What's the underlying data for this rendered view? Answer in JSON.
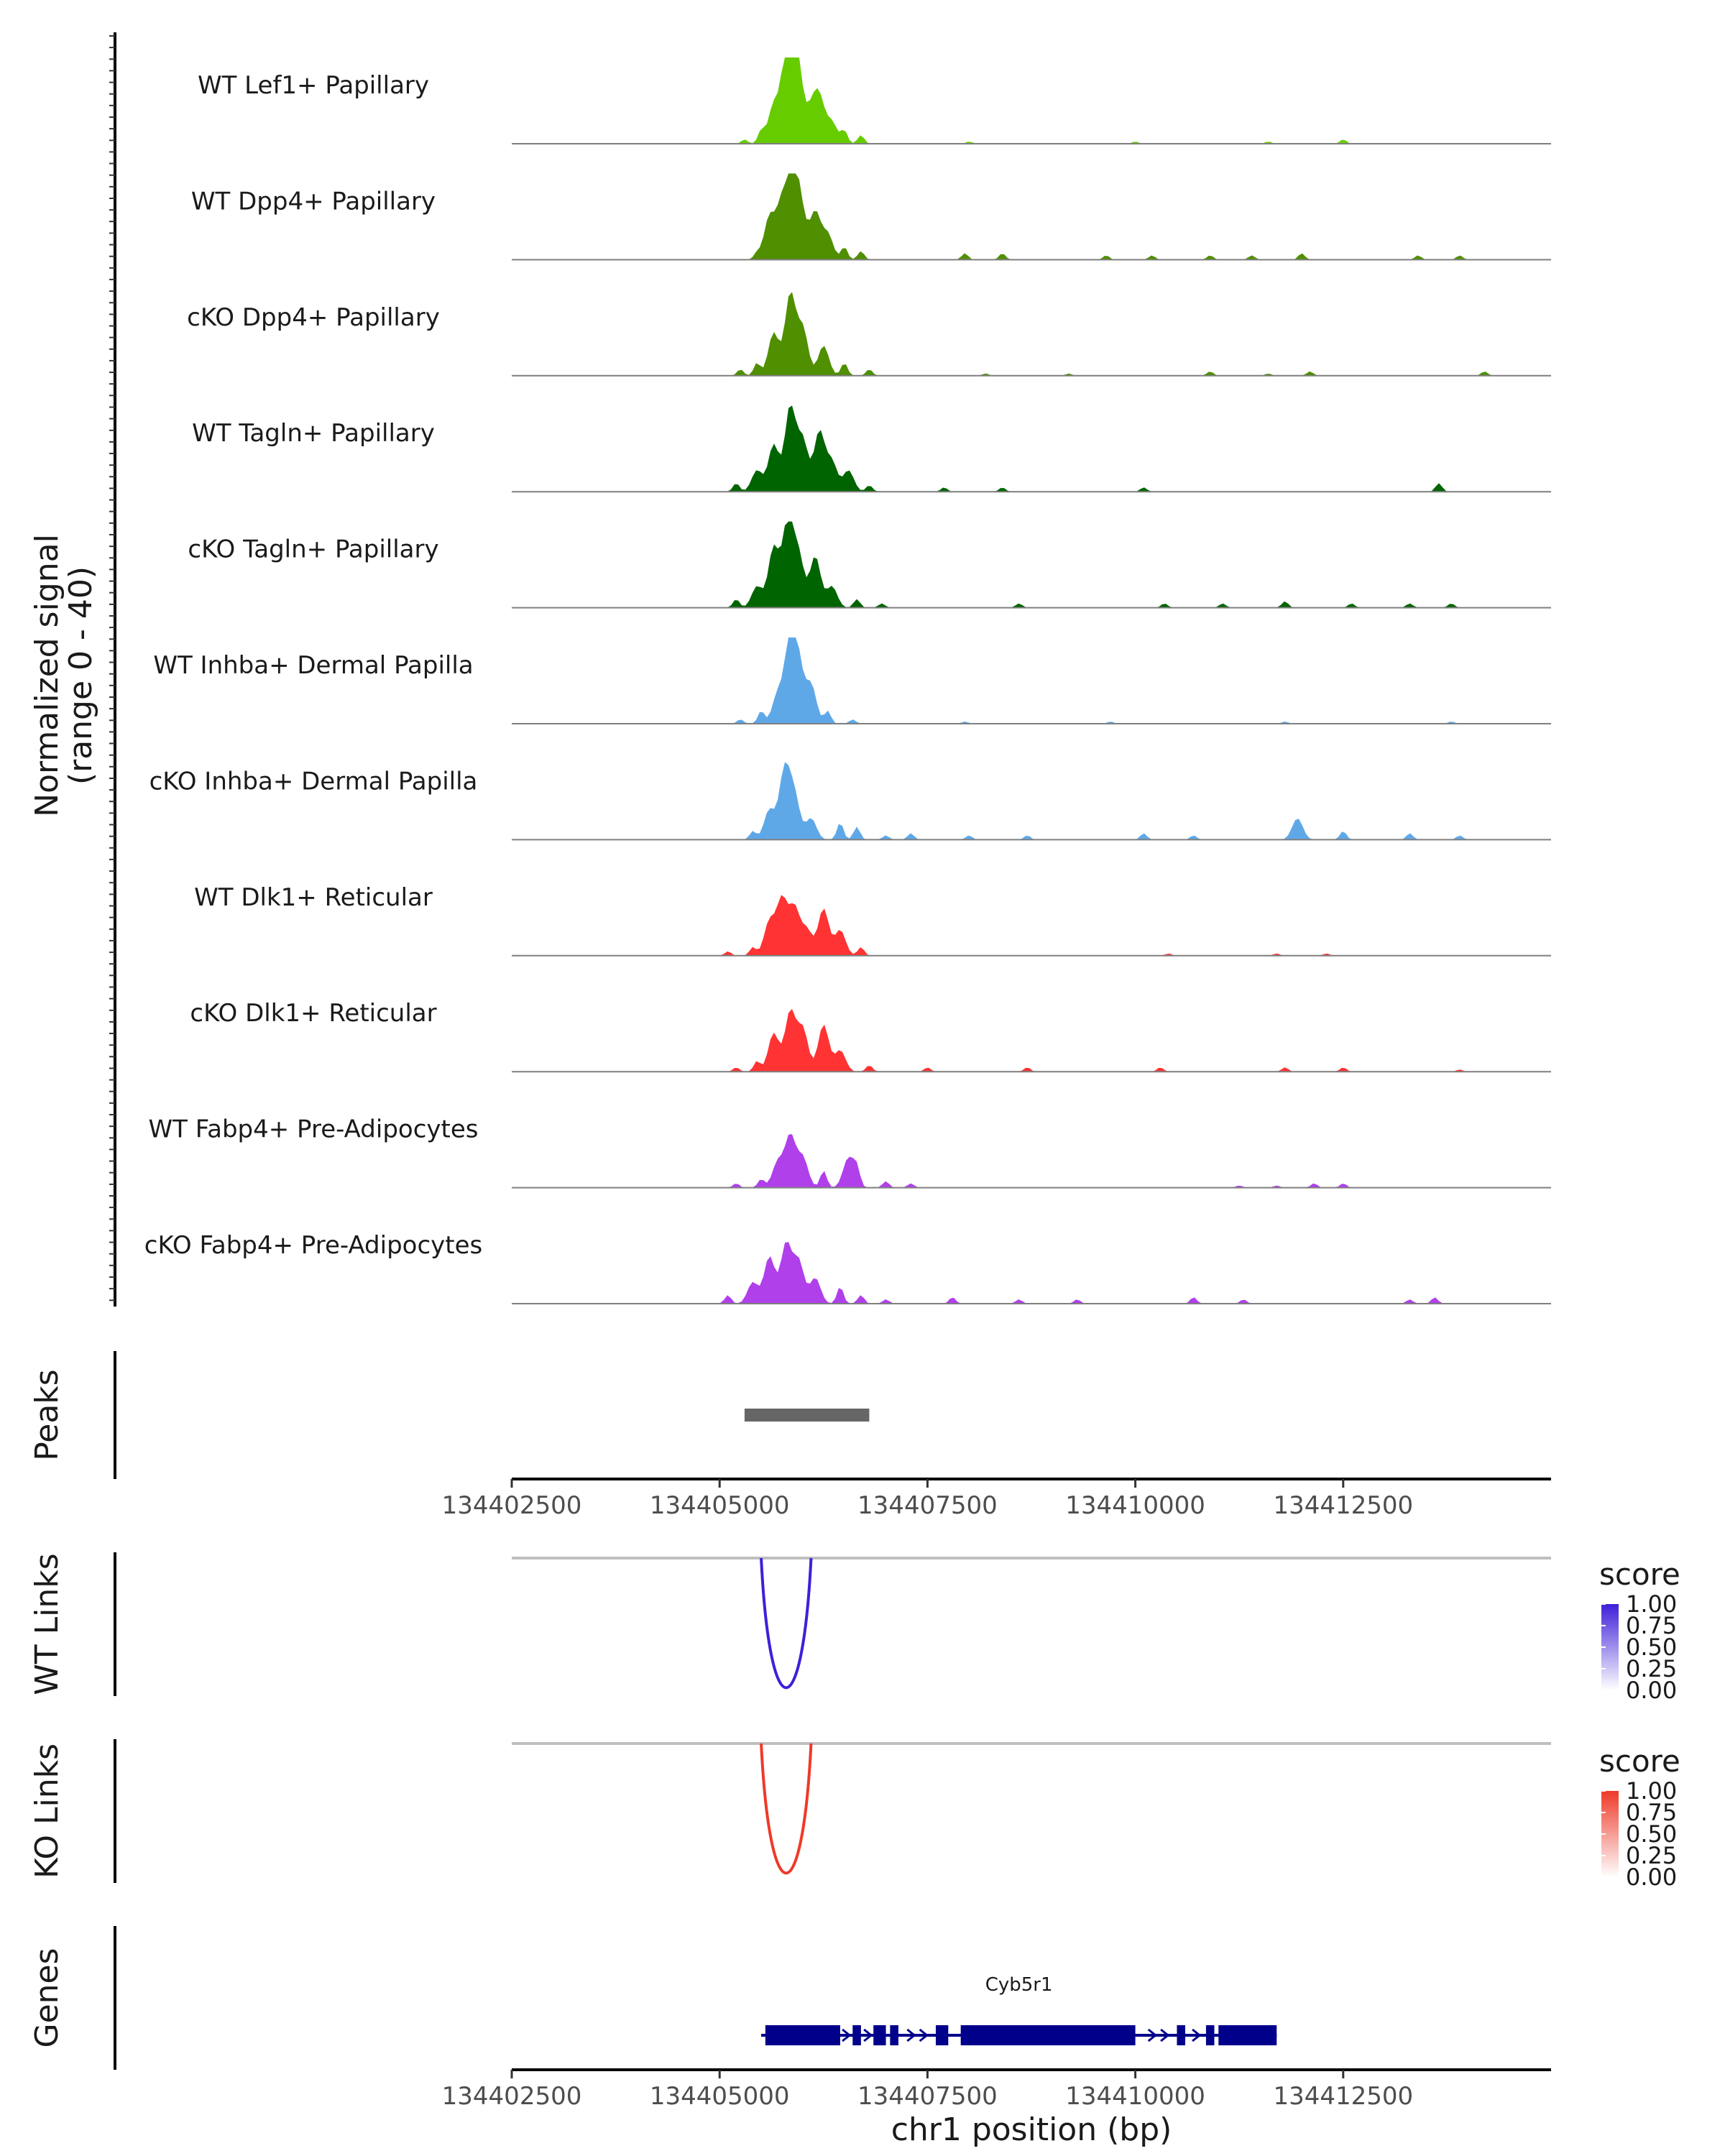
{
  "chart_data": {
    "type": "area",
    "x_range": [
      134402500,
      134415000
    ],
    "y_range": [
      0,
      40
    ],
    "signal_axis_label": "Normalized signal",
    "signal_axis_range_label": "(range 0 - 40)",
    "x_axis_label": "chr1 position (bp)",
    "x_ticks": [
      {
        "value": 134402500,
        "label": "134402500"
      },
      {
        "value": 134405000,
        "label": "134405000"
      },
      {
        "value": 134407500,
        "label": "134407500"
      },
      {
        "value": 134410000,
        "label": "134410000"
      },
      {
        "value": 134412500,
        "label": "134412500"
      }
    ],
    "coverage_tracks": [
      {
        "name": "WT Lef1+ Papillary",
        "color": "#66cc00",
        "peaks": [
          [
            134405300,
            2
          ],
          [
            134405500,
            6
          ],
          [
            134405650,
            18
          ],
          [
            134405800,
            34
          ],
          [
            134405880,
            40
          ],
          [
            134405950,
            22
          ],
          [
            134406100,
            14
          ],
          [
            134406200,
            20
          ],
          [
            134406350,
            10
          ],
          [
            134406500,
            6
          ],
          [
            134406700,
            4
          ],
          [
            134408000,
            1
          ],
          [
            134410000,
            1
          ],
          [
            134411600,
            1
          ],
          [
            134412500,
            2
          ]
        ]
      },
      {
        "name": "WT Dpp4+ Papillary",
        "color": "#4f8f00",
        "peaks": [
          [
            134405450,
            3
          ],
          [
            134405600,
            20
          ],
          [
            134405750,
            26
          ],
          [
            134405880,
            38
          ],
          [
            134405980,
            20
          ],
          [
            134406150,
            22
          ],
          [
            134406300,
            12
          ],
          [
            134406500,
            6
          ],
          [
            134406700,
            4
          ],
          [
            134407950,
            3
          ],
          [
            134408400,
            3
          ],
          [
            134409650,
            2
          ],
          [
            134410200,
            2
          ],
          [
            134410900,
            2
          ],
          [
            134411400,
            2
          ],
          [
            134412000,
            3
          ],
          [
            134413400,
            2
          ],
          [
            134413900,
            2
          ]
        ]
      },
      {
        "name": "cKO Dpp4+ Papillary",
        "color": "#4f8f00",
        "peaks": [
          [
            134405250,
            3
          ],
          [
            134405450,
            6
          ],
          [
            134405650,
            20
          ],
          [
            134405850,
            38
          ],
          [
            134406000,
            22
          ],
          [
            134406250,
            14
          ],
          [
            134406500,
            6
          ],
          [
            134406800,
            3
          ],
          [
            134408200,
            1
          ],
          [
            134409200,
            1
          ],
          [
            134410900,
            2
          ],
          [
            134411600,
            1
          ],
          [
            134412100,
            2
          ],
          [
            134414200,
            2
          ]
        ]
      },
      {
        "name": "WT Tagln+ Papillary",
        "color": "#006400",
        "peaks": [
          [
            134405200,
            4
          ],
          [
            134405450,
            10
          ],
          [
            134405650,
            22
          ],
          [
            134405850,
            40
          ],
          [
            134406000,
            24
          ],
          [
            134406200,
            28
          ],
          [
            134406350,
            14
          ],
          [
            134406550,
            10
          ],
          [
            134406800,
            3
          ],
          [
            134407700,
            2
          ],
          [
            134408400,
            2
          ],
          [
            134410100,
            2
          ],
          [
            134413650,
            4
          ]
        ]
      },
      {
        "name": "cKO Tagln+ Papillary",
        "color": "#006400",
        "peaks": [
          [
            134405200,
            4
          ],
          [
            134405450,
            10
          ],
          [
            134405650,
            28
          ],
          [
            134405820,
            40
          ],
          [
            134405950,
            24
          ],
          [
            134406150,
            24
          ],
          [
            134406350,
            10
          ],
          [
            134406650,
            4
          ],
          [
            134406950,
            2
          ],
          [
            134408600,
            2
          ],
          [
            134410350,
            2
          ],
          [
            134411050,
            2
          ],
          [
            134411800,
            3
          ],
          [
            134412600,
            2
          ],
          [
            134413300,
            2
          ],
          [
            134413800,
            2
          ]
        ]
      },
      {
        "name": "WT Inhba+ Dermal Papilla",
        "color": "#5fa8e8",
        "peaks": [
          [
            134405250,
            2
          ],
          [
            134405500,
            6
          ],
          [
            134405700,
            14
          ],
          [
            134405850,
            40
          ],
          [
            134405950,
            24
          ],
          [
            134406100,
            18
          ],
          [
            134406300,
            6
          ],
          [
            134406600,
            2
          ],
          [
            134407950,
            1
          ],
          [
            134409700,
            1
          ],
          [
            134411800,
            1
          ],
          [
            134413800,
            1
          ]
        ]
      },
      {
        "name": "cKO Inhba+ Dermal Papilla",
        "color": "#5fa8e8",
        "peaks": [
          [
            134405400,
            4
          ],
          [
            134405600,
            14
          ],
          [
            134405780,
            32
          ],
          [
            134405900,
            20
          ],
          [
            134406100,
            10
          ],
          [
            134406450,
            8
          ],
          [
            134406650,
            6
          ],
          [
            134407000,
            2
          ],
          [
            134407300,
            3
          ],
          [
            134408000,
            2
          ],
          [
            134408700,
            2
          ],
          [
            134410100,
            3
          ],
          [
            134410700,
            2
          ],
          [
            134411950,
            10
          ],
          [
            134412500,
            4
          ],
          [
            134413300,
            3
          ],
          [
            134413900,
            2
          ]
        ]
      },
      {
        "name": "WT Dlk1+ Reticular",
        "color": "#ff3333",
        "peaks": [
          [
            134405100,
            2
          ],
          [
            134405400,
            4
          ],
          [
            134405600,
            16
          ],
          [
            134405750,
            26
          ],
          [
            134405900,
            22
          ],
          [
            134406050,
            12
          ],
          [
            134406250,
            22
          ],
          [
            134406450,
            12
          ],
          [
            134406700,
            4
          ],
          [
            134410400,
            1
          ],
          [
            134411700,
            1
          ],
          [
            134412300,
            1
          ]
        ]
      },
      {
        "name": "cKO Dlk1+ Reticular",
        "color": "#ff3333",
        "peaks": [
          [
            134405200,
            2
          ],
          [
            134405450,
            5
          ],
          [
            134405650,
            18
          ],
          [
            134405850,
            28
          ],
          [
            134406000,
            20
          ],
          [
            134406250,
            22
          ],
          [
            134406450,
            10
          ],
          [
            134406800,
            3
          ],
          [
            134407500,
            2
          ],
          [
            134408700,
            2
          ],
          [
            134410300,
            2
          ],
          [
            134411800,
            2
          ],
          [
            134412500,
            2
          ],
          [
            134413900,
            1
          ]
        ]
      },
      {
        "name": "WT Fabp4+ Pre-Adipocytes",
        "color": "#b040ea",
        "peaks": [
          [
            134405200,
            2
          ],
          [
            134405500,
            4
          ],
          [
            134405700,
            12
          ],
          [
            134405850,
            24
          ],
          [
            134406000,
            14
          ],
          [
            134406250,
            8
          ],
          [
            134406550,
            14
          ],
          [
            134406650,
            8
          ],
          [
            134407000,
            3
          ],
          [
            134407300,
            2
          ],
          [
            134411250,
            1
          ],
          [
            134411700,
            1
          ],
          [
            134412150,
            2
          ],
          [
            134412500,
            2
          ]
        ]
      },
      {
        "name": "cKO Fabp4+ Pre-Adipocytes",
        "color": "#b040ea",
        "peaks": [
          [
            134405100,
            4
          ],
          [
            134405400,
            10
          ],
          [
            134405600,
            22
          ],
          [
            134405800,
            28
          ],
          [
            134405950,
            20
          ],
          [
            134406150,
            12
          ],
          [
            134406450,
            8
          ],
          [
            134406700,
            4
          ],
          [
            134407000,
            2
          ],
          [
            134407800,
            3
          ],
          [
            134408600,
            2
          ],
          [
            134409300,
            2
          ],
          [
            134410700,
            3
          ],
          [
            134411300,
            2
          ],
          [
            134413300,
            2
          ],
          [
            134413600,
            3
          ]
        ]
      }
    ],
    "peaks_panel": {
      "label": "Peaks",
      "regions": [
        [
          134405300,
          134406800
        ]
      ],
      "color": "#666666"
    },
    "links_panels": [
      {
        "label": "WT Links",
        "color": "#3f1fd9",
        "start": 134405500,
        "end": 134406100,
        "score": 1.0,
        "legend_title": "score",
        "legend_ticks": [
          "1.00",
          "0.75",
          "0.50",
          "0.25",
          "0.00"
        ]
      },
      {
        "label": "KO Links",
        "color": "#ee3a2a",
        "start": 134405500,
        "end": 134406100,
        "score": 1.0,
        "legend_title": "score",
        "legend_ticks": [
          "1.00",
          "0.75",
          "0.50",
          "0.25",
          "0.00"
        ]
      }
    ],
    "genes_panel": {
      "label": "Genes",
      "gene": "Cyb5r1",
      "color": "#00008b",
      "start": 134405500,
      "end": 134411700,
      "exons": [
        [
          134405550,
          134406450
        ],
        [
          134406600,
          134406700
        ],
        [
          134406850,
          134407000
        ],
        [
          134407050,
          134407150
        ],
        [
          134407600,
          134407750
        ],
        [
          134407900,
          134410000
        ],
        [
          134410500,
          134410600
        ],
        [
          134410850,
          134410950
        ],
        [
          134411000,
          134411700
        ]
      ]
    }
  }
}
